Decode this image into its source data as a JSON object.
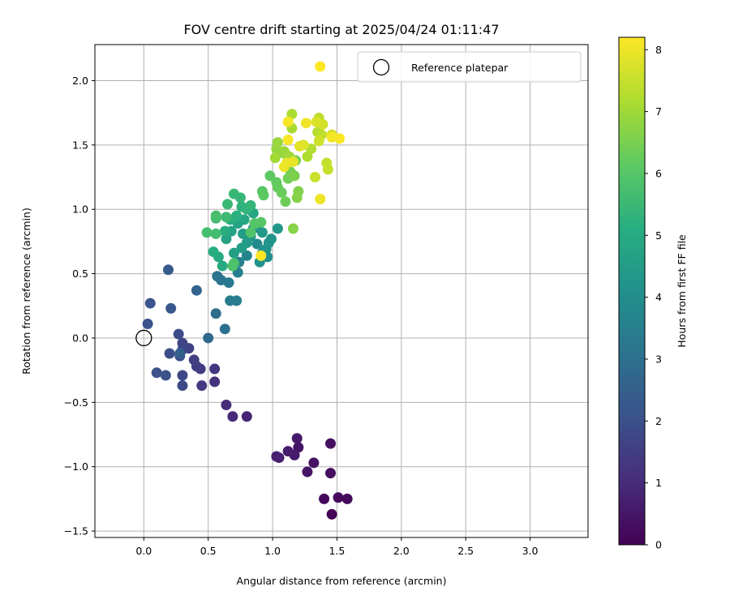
{
  "chart_data": {
    "type": "scatter",
    "title": "FOV centre drift starting at 2025/04/24 01:11:47",
    "xlabel": "Angular distance from reference (arcmin)",
    "ylabel": "Rotation from reference (arcmin)",
    "xlim": [
      -0.38,
      3.45
    ],
    "ylim": [
      -1.55,
      2.28
    ],
    "xticks": [
      "0.0",
      "0.5",
      "1.0",
      "1.5",
      "2.0",
      "2.5",
      "3.0"
    ],
    "yticks": [
      "−1.5",
      "−1.0",
      "−0.5",
      "0.0",
      "0.5",
      "1.0",
      "1.5",
      "2.0"
    ],
    "grid": true,
    "legend_position": "top-right",
    "colorbar": {
      "label": "Hours from first FF file",
      "range": [
        0,
        8.2
      ],
      "ticks": [
        "0",
        "1",
        "2",
        "3",
        "4",
        "5",
        "6",
        "7",
        "8"
      ],
      "colormap": "viridis"
    },
    "reference_point": {
      "name": "Reference platepar",
      "x": 0.0,
      "y": 0.0,
      "marker": "hollow-circle"
    },
    "points": [
      {
        "x": 1.46,
        "y": -1.37,
        "c": 0.05
      },
      {
        "x": 1.4,
        "y": -1.25,
        "c": 0.15
      },
      {
        "x": 1.51,
        "y": -1.24,
        "c": 0.2
      },
      {
        "x": 1.58,
        "y": -1.25,
        "c": 0.25
      },
      {
        "x": 1.45,
        "y": -1.05,
        "c": 0.3
      },
      {
        "x": 1.45,
        "y": -0.82,
        "c": 0.35
      },
      {
        "x": 1.32,
        "y": -0.97,
        "c": 0.4
      },
      {
        "x": 1.27,
        "y": -1.04,
        "c": 0.45
      },
      {
        "x": 1.2,
        "y": -0.85,
        "c": 0.5
      },
      {
        "x": 1.19,
        "y": -0.78,
        "c": 0.55
      },
      {
        "x": 1.17,
        "y": -0.91,
        "c": 0.6
      },
      {
        "x": 1.12,
        "y": -0.88,
        "c": 0.65
      },
      {
        "x": 1.05,
        "y": -0.93,
        "c": 0.7
      },
      {
        "x": 1.03,
        "y": -0.92,
        "c": 0.75
      },
      {
        "x": 0.8,
        "y": -0.61,
        "c": 0.85
      },
      {
        "x": 0.69,
        "y": -0.61,
        "c": 0.95
      },
      {
        "x": 0.64,
        "y": -0.52,
        "c": 1.05
      },
      {
        "x": 0.55,
        "y": -0.34,
        "c": 1.2
      },
      {
        "x": 0.55,
        "y": -0.24,
        "c": 1.3
      },
      {
        "x": 0.45,
        "y": -0.37,
        "c": 1.35
      },
      {
        "x": 0.44,
        "y": -0.24,
        "c": 1.45
      },
      {
        "x": 0.41,
        "y": -0.22,
        "c": 1.5
      },
      {
        "x": 0.39,
        "y": -0.17,
        "c": 1.55
      },
      {
        "x": 0.35,
        "y": -0.08,
        "c": 1.6
      },
      {
        "x": 0.3,
        "y": -0.04,
        "c": 1.65
      },
      {
        "x": 0.3,
        "y": -0.09,
        "c": 1.7
      },
      {
        "x": 0.3,
        "y": -0.29,
        "c": 1.75
      },
      {
        "x": 0.3,
        "y": -0.37,
        "c": 1.8
      },
      {
        "x": 0.27,
        "y": 0.03,
        "c": 1.85
      },
      {
        "x": 0.28,
        "y": -0.14,
        "c": 1.9
      },
      {
        "x": 0.2,
        "y": -0.12,
        "c": 1.95
      },
      {
        "x": 0.17,
        "y": -0.29,
        "c": 2.0
      },
      {
        "x": 0.1,
        "y": -0.27,
        "c": 2.05
      },
      {
        "x": 0.03,
        "y": 0.11,
        "c": 2.1
      },
      {
        "x": 0.05,
        "y": 0.27,
        "c": 2.15
      },
      {
        "x": 0.21,
        "y": 0.23,
        "c": 2.2
      },
      {
        "x": 0.19,
        "y": 0.53,
        "c": 2.3
      },
      {
        "x": 0.28,
        "y": -0.12,
        "c": 2.5
      },
      {
        "x": 0.41,
        "y": 0.37,
        "c": 2.6
      },
      {
        "x": 0.5,
        "y": 0.0,
        "c": 2.75
      },
      {
        "x": 0.56,
        "y": 0.19,
        "c": 2.9
      },
      {
        "x": 0.63,
        "y": 0.07,
        "c": 3.0
      },
      {
        "x": 0.57,
        "y": 0.48,
        "c": 3.1
      },
      {
        "x": 0.6,
        "y": 0.45,
        "c": 3.2
      },
      {
        "x": 0.66,
        "y": 0.43,
        "c": 3.3
      },
      {
        "x": 0.67,
        "y": 0.29,
        "c": 3.4
      },
      {
        "x": 0.72,
        "y": 0.29,
        "c": 3.45
      },
      {
        "x": 0.73,
        "y": 0.51,
        "c": 3.5
      },
      {
        "x": 0.74,
        "y": 0.59,
        "c": 3.6
      },
      {
        "x": 0.8,
        "y": 0.64,
        "c": 3.7
      },
      {
        "x": 0.85,
        "y": 0.85,
        "c": 3.8
      },
      {
        "x": 0.88,
        "y": 0.73,
        "c": 3.9
      },
      {
        "x": 0.92,
        "y": 0.66,
        "c": 4.0
      },
      {
        "x": 0.96,
        "y": 0.63,
        "c": 4.05
      },
      {
        "x": 0.9,
        "y": 0.59,
        "c": 4.1
      },
      {
        "x": 0.95,
        "y": 0.69,
        "c": 4.15
      },
      {
        "x": 0.97,
        "y": 0.74,
        "c": 4.2
      },
      {
        "x": 0.99,
        "y": 0.77,
        "c": 4.25
      },
      {
        "x": 1.04,
        "y": 0.85,
        "c": 4.3
      },
      {
        "x": 0.92,
        "y": 0.82,
        "c": 4.35
      },
      {
        "x": 0.83,
        "y": 0.79,
        "c": 4.4
      },
      {
        "x": 0.8,
        "y": 0.74,
        "c": 4.45
      },
      {
        "x": 0.77,
        "y": 0.81,
        "c": 4.5
      },
      {
        "x": 0.76,
        "y": 0.7,
        "c": 4.55
      },
      {
        "x": 0.7,
        "y": 0.66,
        "c": 4.6
      },
      {
        "x": 0.64,
        "y": 0.77,
        "c": 4.65
      },
      {
        "x": 0.68,
        "y": 0.83,
        "c": 4.7
      },
      {
        "x": 0.73,
        "y": 0.89,
        "c": 4.75
      },
      {
        "x": 0.78,
        "y": 0.92,
        "c": 4.8
      },
      {
        "x": 0.85,
        "y": 0.97,
        "c": 4.85
      },
      {
        "x": 0.87,
        "y": 0.88,
        "c": 4.9
      },
      {
        "x": 0.61,
        "y": 0.56,
        "c": 4.95
      },
      {
        "x": 0.58,
        "y": 0.63,
        "c": 5.0
      },
      {
        "x": 0.54,
        "y": 0.67,
        "c": 5.05
      },
      {
        "x": 0.63,
        "y": 0.83,
        "c": 5.1
      },
      {
        "x": 0.67,
        "y": 0.92,
        "c": 5.15
      },
      {
        "x": 0.72,
        "y": 0.95,
        "c": 5.2
      },
      {
        "x": 0.76,
        "y": 1.02,
        "c": 5.25
      },
      {
        "x": 0.8,
        "y": 1.0,
        "c": 5.3
      },
      {
        "x": 0.83,
        "y": 1.03,
        "c": 5.35
      },
      {
        "x": 0.75,
        "y": 1.09,
        "c": 5.4
      },
      {
        "x": 0.7,
        "y": 1.12,
        "c": 5.45
      },
      {
        "x": 0.65,
        "y": 1.04,
        "c": 5.5
      },
      {
        "x": 0.64,
        "y": 0.94,
        "c": 5.55
      },
      {
        "x": 0.56,
        "y": 0.93,
        "c": 5.6
      },
      {
        "x": 0.56,
        "y": 0.81,
        "c": 5.65
      },
      {
        "x": 0.49,
        "y": 0.82,
        "c": 5.7
      },
      {
        "x": 0.56,
        "y": 0.95,
        "c": 5.75
      },
      {
        "x": 0.7,
        "y": 0.58,
        "c": 5.8
      },
      {
        "x": 0.69,
        "y": 0.56,
        "c": 5.85
      },
      {
        "x": 0.83,
        "y": 0.82,
        "c": 5.9
      },
      {
        "x": 0.86,
        "y": 0.89,
        "c": 5.95
      },
      {
        "x": 0.91,
        "y": 0.9,
        "c": 6.0
      },
      {
        "x": 0.92,
        "y": 1.14,
        "c": 6.05
      },
      {
        "x": 0.93,
        "y": 1.11,
        "c": 6.1
      },
      {
        "x": 0.98,
        "y": 1.26,
        "c": 6.15
      },
      {
        "x": 1.03,
        "y": 1.21,
        "c": 6.2
      },
      {
        "x": 1.04,
        "y": 1.17,
        "c": 6.25
      },
      {
        "x": 1.07,
        "y": 1.13,
        "c": 6.3
      },
      {
        "x": 1.1,
        "y": 1.06,
        "c": 6.35
      },
      {
        "x": 1.12,
        "y": 1.24,
        "c": 6.4
      },
      {
        "x": 1.14,
        "y": 1.29,
        "c": 6.45
      },
      {
        "x": 1.18,
        "y": 1.38,
        "c": 6.5
      },
      {
        "x": 1.17,
        "y": 1.26,
        "c": 6.55
      },
      {
        "x": 1.2,
        "y": 1.14,
        "c": 6.6
      },
      {
        "x": 1.19,
        "y": 1.09,
        "c": 6.65
      },
      {
        "x": 1.16,
        "y": 0.85,
        "c": 6.7
      },
      {
        "x": 1.1,
        "y": 1.43,
        "c": 6.75
      },
      {
        "x": 1.05,
        "y": 1.44,
        "c": 6.8
      },
      {
        "x": 1.03,
        "y": 1.47,
        "c": 6.85
      },
      {
        "x": 1.04,
        "y": 1.52,
        "c": 6.9
      },
      {
        "x": 1.09,
        "y": 1.45,
        "c": 6.95
      },
      {
        "x": 1.13,
        "y": 1.41,
        "c": 7.0
      },
      {
        "x": 1.02,
        "y": 1.4,
        "c": 7.05
      },
      {
        "x": 1.15,
        "y": 1.63,
        "c": 7.1
      },
      {
        "x": 1.15,
        "y": 1.74,
        "c": 7.15
      },
      {
        "x": 1.27,
        "y": 1.41,
        "c": 7.2
      },
      {
        "x": 1.3,
        "y": 1.47,
        "c": 7.25
      },
      {
        "x": 1.35,
        "y": 1.6,
        "c": 7.3
      },
      {
        "x": 1.36,
        "y": 1.71,
        "c": 7.35
      },
      {
        "x": 1.38,
        "y": 1.58,
        "c": 7.4
      },
      {
        "x": 1.42,
        "y": 1.36,
        "c": 7.45
      },
      {
        "x": 1.43,
        "y": 1.31,
        "c": 7.5
      },
      {
        "x": 1.33,
        "y": 1.25,
        "c": 7.55
      },
      {
        "x": 1.36,
        "y": 1.53,
        "c": 7.6
      },
      {
        "x": 1.39,
        "y": 1.66,
        "c": 7.65
      },
      {
        "x": 1.46,
        "y": 1.58,
        "c": 7.7
      },
      {
        "x": 1.34,
        "y": 1.68,
        "c": 7.75
      },
      {
        "x": 1.24,
        "y": 1.5,
        "c": 7.8
      },
      {
        "x": 1.21,
        "y": 1.49,
        "c": 7.85
      },
      {
        "x": 1.16,
        "y": 1.37,
        "c": 7.9
      },
      {
        "x": 1.11,
        "y": 1.36,
        "c": 7.95
      },
      {
        "x": 1.09,
        "y": 1.33,
        "c": 8.0
      },
      {
        "x": 1.26,
        "y": 1.67,
        "c": 8.05
      },
      {
        "x": 1.12,
        "y": 1.68,
        "c": 8.1
      },
      {
        "x": 1.12,
        "y": 1.54,
        "c": 8.15
      },
      {
        "x": 1.52,
        "y": 1.55,
        "c": 8.15
      },
      {
        "x": 1.46,
        "y": 1.56,
        "c": 8.1
      },
      {
        "x": 1.37,
        "y": 1.08,
        "c": 8.0
      },
      {
        "x": 0.91,
        "y": 0.64,
        "c": 8.2
      },
      {
        "x": 1.37,
        "y": 2.11,
        "c": 8.2
      }
    ]
  }
}
